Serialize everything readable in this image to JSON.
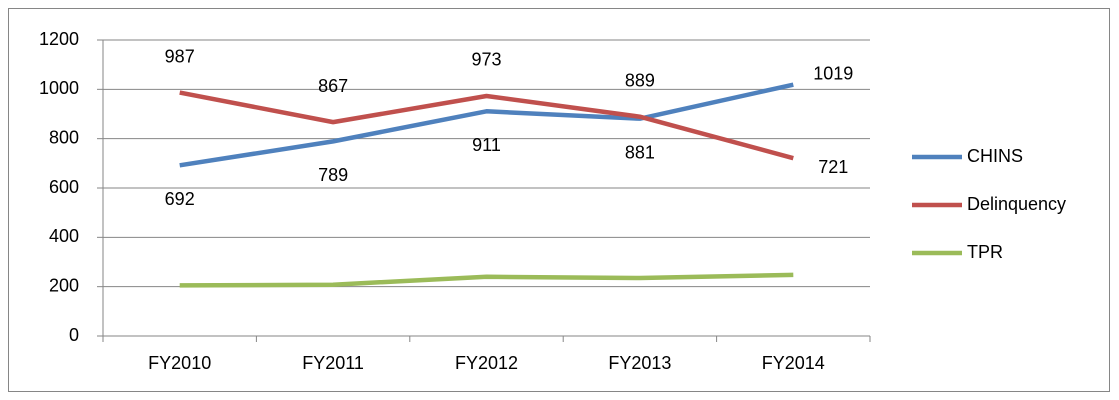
{
  "chart_data": {
    "type": "line",
    "categories": [
      "FY2010",
      "FY2011",
      "FY2012",
      "FY2013",
      "FY2014"
    ],
    "series": [
      {
        "name": "CHINS",
        "color": "#4f81bd",
        "values": [
          692,
          789,
          911,
          881,
          1019
        ],
        "show_labels": true,
        "label_side": "below"
      },
      {
        "name": "Delinquency",
        "color": "#c0504d",
        "values": [
          987,
          867,
          973,
          889,
          721
        ],
        "show_labels": true,
        "label_side": "above"
      },
      {
        "name": "TPR",
        "color": "#9bbb59",
        "values": [
          205,
          208,
          240,
          235,
          248
        ],
        "show_labels": false
      }
    ],
    "ylim": [
      0,
      1200
    ],
    "yticks": [
      0,
      200,
      400,
      600,
      800,
      1000,
      1200
    ],
    "grid": true,
    "legend": "right"
  }
}
